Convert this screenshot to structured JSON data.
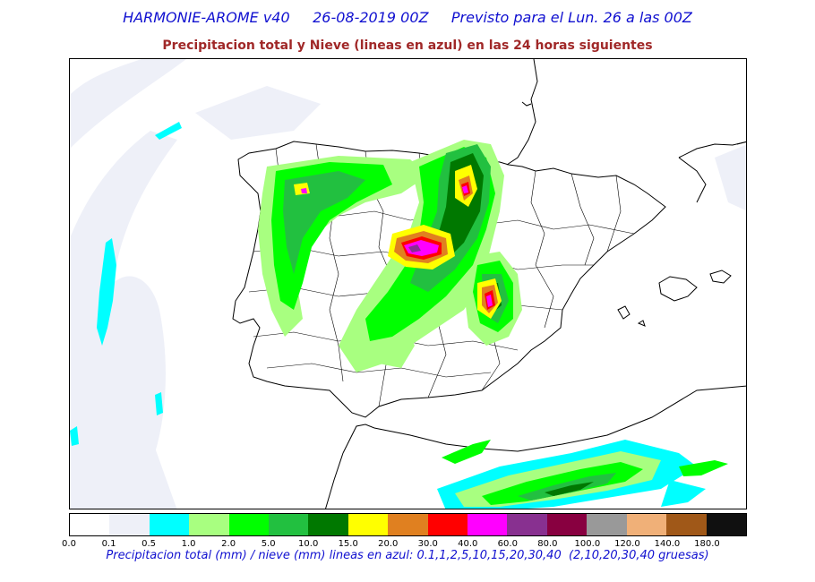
{
  "header": {
    "title": "HARMONIE-AROME v40     26-08-2019 00Z     Previsto para el Lun. 26 a las 00Z",
    "subtitle": "Precipitacion total y Nieve (lineas en azul) en las 24 horas siguientes"
  },
  "legend": {
    "ticks": [
      "0.0",
      "0.1",
      "0.5",
      "1.0",
      "2.0",
      "5.0",
      "10.0",
      "15.0",
      "20.0",
      "30.0",
      "40.0",
      "60.0",
      "80.0",
      "100.0",
      "120.0",
      "140.0",
      "180.0"
    ],
    "colors": [
      "#ffffff",
      "#eef0f8",
      "#00ffff",
      "#a8ff80",
      "#00ff00",
      "#22c040",
      "#007800",
      "#ffff00",
      "#e08020",
      "#ff0000",
      "#ff00ff",
      "#883090",
      "#880040",
      "#999999",
      "#f0b078",
      "#a05818",
      "#101010"
    ],
    "caption": "Precipitacion total (mm) / nieve (mm) lineas en azul: 0.1,1,2,5,10,15,20,30,40  (2,10,20,30,40 gruesas)"
  }
}
